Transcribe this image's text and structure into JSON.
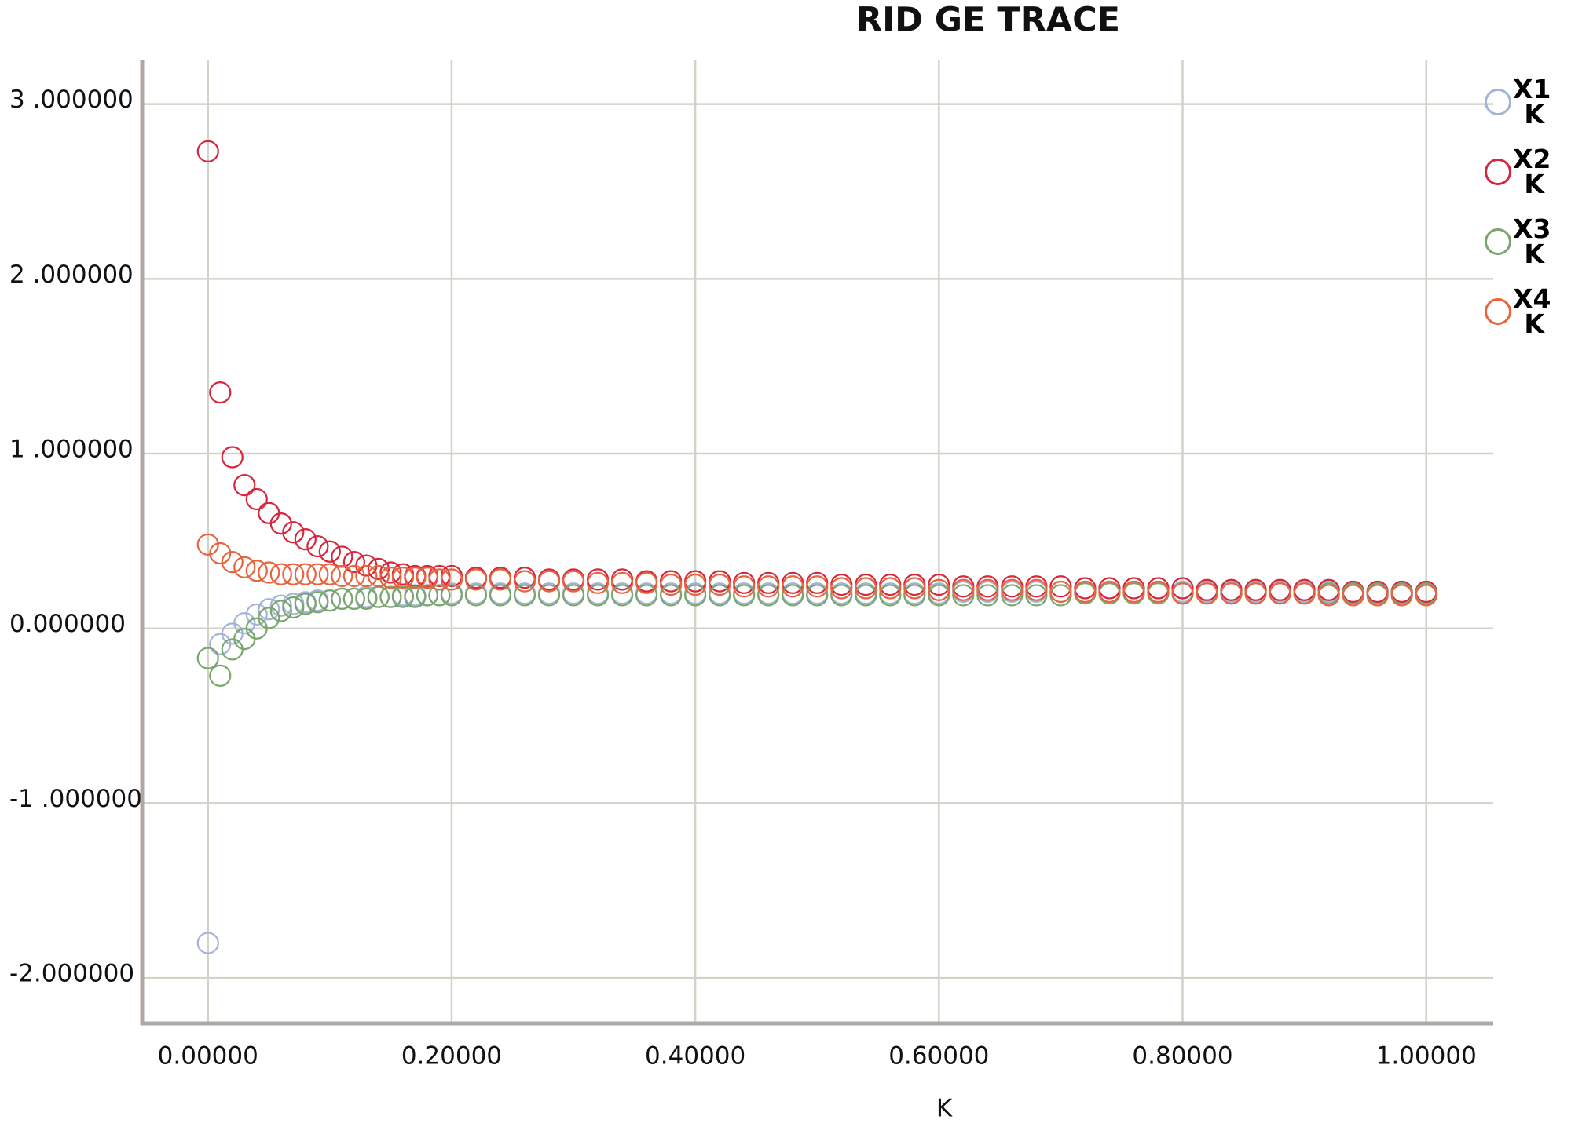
{
  "chart_data": {
    "type": "scatter",
    "title": "RID GE TRACE",
    "x_label": "K",
    "x": [
      0,
      0.01,
      0.02,
      0.03,
      0.04,
      0.05,
      0.06,
      0.07,
      0.08,
      0.09,
      0.1,
      0.11,
      0.12,
      0.13,
      0.14,
      0.15,
      0.16,
      0.17,
      0.18,
      0.19,
      0.2,
      0.22,
      0.24,
      0.26,
      0.28,
      0.3,
      0.32,
      0.34,
      0.36,
      0.38,
      0.4,
      0.42,
      0.44,
      0.46,
      0.48,
      0.5,
      0.52,
      0.54,
      0.56,
      0.58,
      0.6,
      0.62,
      0.64,
      0.66,
      0.68,
      0.7,
      0.72,
      0.74,
      0.76,
      0.78,
      0.8,
      0.82,
      0.84,
      0.86,
      0.88,
      0.9,
      0.92,
      0.94,
      0.96,
      0.98,
      1.0
    ],
    "series": [
      {
        "name": "X1 K",
        "color": "#a3b4d6",
        "values": [
          -1.8,
          -0.09,
          -0.03,
          0.03,
          0.08,
          0.11,
          0.13,
          0.14,
          0.15,
          0.16,
          0.16,
          0.17,
          0.17,
          0.18,
          0.18,
          0.18,
          0.19,
          0.19,
          0.19,
          0.19,
          0.2,
          0.2,
          0.2,
          0.2,
          0.2,
          0.2,
          0.2,
          0.2,
          0.2,
          0.2,
          0.2,
          0.2,
          0.2,
          0.2,
          0.2,
          0.2,
          0.2,
          0.2,
          0.2,
          0.2,
          0.2,
          0.21,
          0.21,
          0.21,
          0.21,
          0.21,
          0.21,
          0.21,
          0.21,
          0.21,
          0.21,
          0.21,
          0.21,
          0.21,
          0.21,
          0.21,
          0.21,
          0.21,
          0.21,
          0.21,
          0.21
        ]
      },
      {
        "name": "X2 K",
        "color": "#d7263d",
        "values": [
          2.73,
          1.35,
          0.98,
          0.82,
          0.74,
          0.66,
          0.6,
          0.55,
          0.51,
          0.47,
          0.44,
          0.41,
          0.38,
          0.36,
          0.34,
          0.32,
          0.31,
          0.3,
          0.3,
          0.3,
          0.3,
          0.29,
          0.29,
          0.29,
          0.28,
          0.28,
          0.28,
          0.28,
          0.27,
          0.27,
          0.27,
          0.27,
          0.26,
          0.26,
          0.26,
          0.26,
          0.25,
          0.25,
          0.25,
          0.25,
          0.25,
          0.24,
          0.24,
          0.24,
          0.24,
          0.24,
          0.23,
          0.23,
          0.23,
          0.23,
          0.23,
          0.22,
          0.22,
          0.22,
          0.22,
          0.22,
          0.22,
          0.21,
          0.21,
          0.21,
          0.21
        ]
      },
      {
        "name": "X3 K",
        "color": "#7aa66e",
        "values": [
          -0.17,
          -0.27,
          -0.12,
          -0.06,
          0.0,
          0.06,
          0.1,
          0.12,
          0.14,
          0.15,
          0.16,
          0.17,
          0.17,
          0.17,
          0.18,
          0.18,
          0.18,
          0.18,
          0.19,
          0.19,
          0.19,
          0.19,
          0.19,
          0.19,
          0.19,
          0.19,
          0.19,
          0.19,
          0.19,
          0.19,
          0.19,
          0.19,
          0.19,
          0.19,
          0.19,
          0.19,
          0.19,
          0.19,
          0.19,
          0.19,
          0.19,
          0.19,
          0.19,
          0.19,
          0.19,
          0.19,
          0.2,
          0.2,
          0.2,
          0.2,
          0.2,
          0.2,
          0.2,
          0.2,
          0.2,
          0.2,
          0.2,
          0.2,
          0.2,
          0.2,
          0.2
        ]
      },
      {
        "name": "X4 K",
        "color": "#e8643c",
        "values": [
          0.48,
          0.43,
          0.38,
          0.35,
          0.33,
          0.32,
          0.31,
          0.31,
          0.31,
          0.31,
          0.31,
          0.3,
          0.3,
          0.3,
          0.3,
          0.29,
          0.29,
          0.29,
          0.29,
          0.28,
          0.28,
          0.28,
          0.28,
          0.27,
          0.27,
          0.27,
          0.26,
          0.26,
          0.26,
          0.25,
          0.25,
          0.25,
          0.24,
          0.24,
          0.24,
          0.24,
          0.23,
          0.23,
          0.23,
          0.23,
          0.22,
          0.22,
          0.22,
          0.22,
          0.22,
          0.21,
          0.21,
          0.21,
          0.21,
          0.21,
          0.2,
          0.2,
          0.2,
          0.2,
          0.2,
          0.2,
          0.19,
          0.19,
          0.19,
          0.19,
          0.19
        ]
      }
    ],
    "xlim": [
      -0.054,
      1.055
    ],
    "ylim": [
      -2.26,
      3.25
    ],
    "xticks": [
      {
        "value": 0,
        "label": "0.00000"
      },
      {
        "value": 0.2,
        "label": "0.20000"
      },
      {
        "value": 0.4,
        "label": "0.40000"
      },
      {
        "value": 0.6,
        "label": "0.60000"
      },
      {
        "value": 0.8,
        "label": "0.80000"
      },
      {
        "value": 1,
        "label": "1.00000"
      }
    ],
    "yticks": [
      {
        "value": -2,
        "label": "-2.000000"
      },
      {
        "value": -1,
        "label": "-1 .000000"
      },
      {
        "value": 0,
        "label": "0.000000"
      },
      {
        "value": 1,
        "label": "1 .000000"
      },
      {
        "value": 2,
        "label": "2 .000000"
      },
      {
        "value": 3,
        "label": "3 .000000"
      }
    ],
    "grid": true,
    "legend": "right"
  }
}
